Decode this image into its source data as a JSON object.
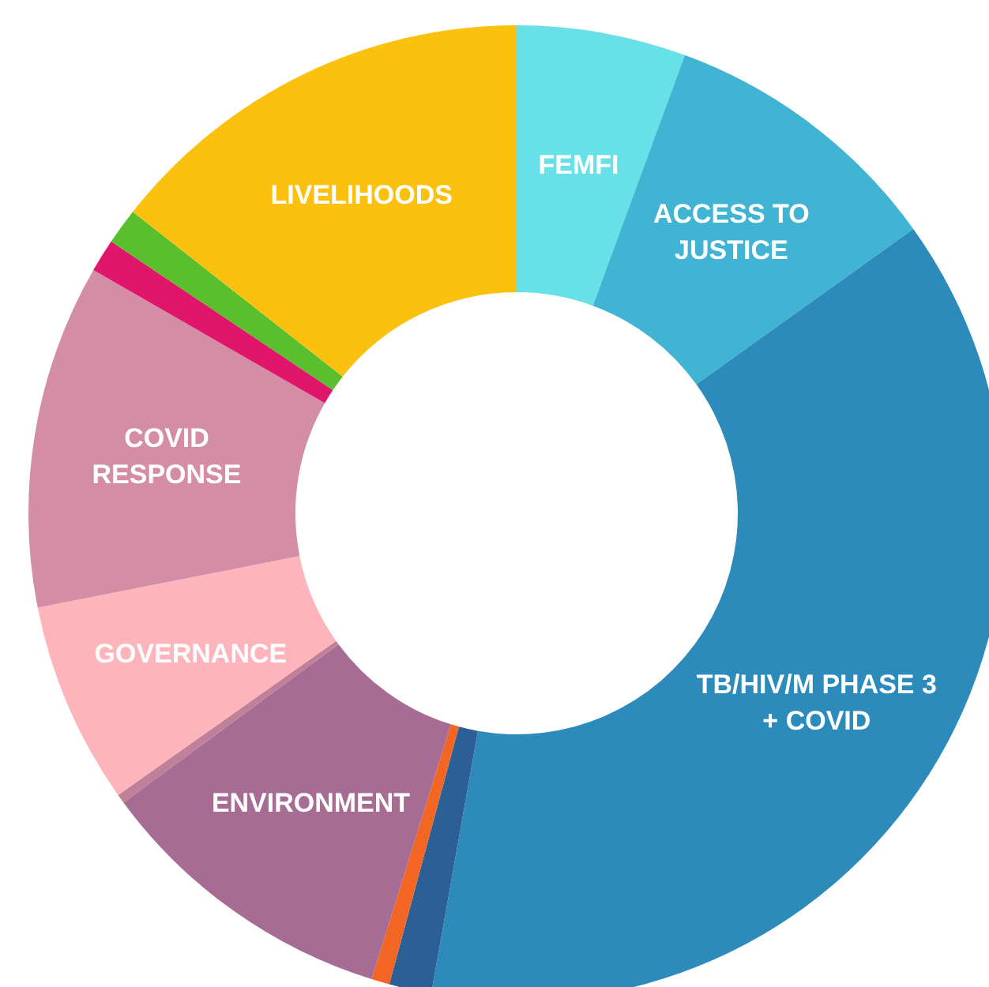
{
  "chart_data": {
    "type": "donut",
    "categories": [
      "FEMFI",
      "ACCESS TO\nJUSTICE",
      "TB/HIV/M PHASE 3\n+ COVID",
      null,
      null,
      "ENVIRONMENT",
      null,
      "GOVERNANCE",
      "COVID\nRESPONSE",
      null,
      null,
      "LIVELIHOODS"
    ],
    "values": [
      5.6,
      9.5,
      37.7,
      1.4,
      0.6,
      10.1,
      0.3,
      6.7,
      11.4,
      1.1,
      1.2,
      14.4
    ],
    "colors": [
      "#67e0e8",
      "#41b4d4",
      "#2c8bba",
      "#2c5f96",
      "#f26522",
      "#a66c94",
      "#c0809a",
      "#fdb5bb",
      "#d38ea6",
      "#e0166b",
      "#5abf2c",
      "#fbc10e"
    ]
  }
}
